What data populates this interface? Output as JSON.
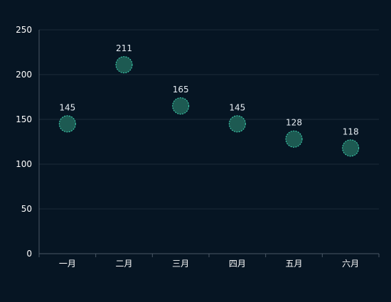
{
  "chart_data": {
    "type": "scatter",
    "title": "",
    "xlabel": "",
    "ylabel": "",
    "categories": [
      "一月",
      "二月",
      "三月",
      "四月",
      "五月",
      "六月"
    ],
    "values": [
      145,
      211,
      165,
      145,
      128,
      118
    ],
    "ylim": [
      0,
      250
    ],
    "yticks": [
      0,
      50,
      100,
      150,
      200,
      250
    ],
    "grid": true,
    "show_data_labels": true,
    "marker": "circle",
    "colors": {
      "background": "#061523",
      "marker_fill": "#1d5a52",
      "marker_stroke": "#3fd6b4",
      "grid": "#1c2b3a",
      "axis": "#4a5866",
      "tick_text": "#ffffff",
      "label_text": "#e6edf3"
    }
  }
}
